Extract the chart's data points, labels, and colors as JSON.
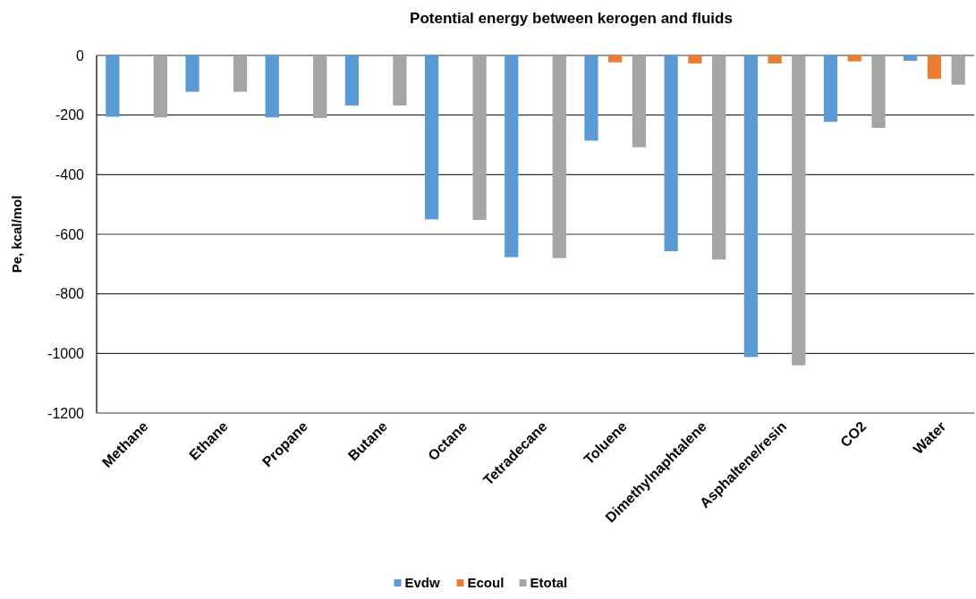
{
  "chart_data": {
    "type": "bar",
    "title": "Potential energy between kerogen and fluids",
    "ylabel": "Pe, kcal/mol",
    "categories": [
      "Methane",
      "Ethane",
      "Propane",
      "Butane",
      "Octane",
      "Tetradecane",
      "Toluene",
      "Dimethylnaphtalene",
      "Asphaltene/resin",
      "CO2",
      "Water"
    ],
    "series": [
      {
        "name": "Evdw",
        "color": "#5b9bd5",
        "values": [
          -206,
          -122,
          -208,
          -168,
          -550,
          -677,
          -286,
          -657,
          -1012,
          -223,
          -18
        ]
      },
      {
        "name": "Ecoul",
        "color": "#ed7d31",
        "values": [
          0,
          0,
          0,
          0,
          0,
          0,
          -23,
          -27,
          -27,
          -20,
          -79
        ]
      },
      {
        "name": "Etotal",
        "color": "#a5a5a5",
        "values": [
          -208,
          -122,
          -210,
          -168,
          -552,
          -680,
          -308,
          -685,
          -1040,
          -243,
          -98
        ]
      }
    ],
    "ylim": [
      -1200,
      0
    ],
    "yticks": [
      0,
      -200,
      -400,
      -600,
      -800,
      -1000,
      -1200
    ],
    "grid": "y",
    "legend": "bottom"
  }
}
